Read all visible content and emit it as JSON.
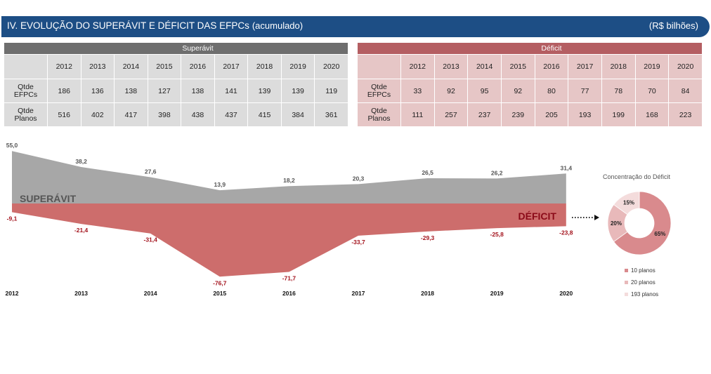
{
  "header": {
    "title": "IV. EVOLUÇÃO DO SUPERÁVIT E DÉFICIT DAS EFPCs",
    "subtitle": "(acumulado)",
    "unit": "(R$ bilhões)"
  },
  "superavit_table": {
    "title": "Superávit",
    "years": [
      "2012",
      "2013",
      "2014",
      "2015",
      "2016",
      "2017",
      "2018",
      "2019",
      "2020"
    ],
    "rows": [
      {
        "label_line1": "Qtde",
        "label_line2": "EFPCs",
        "values": [
          "186",
          "136",
          "138",
          "127",
          "138",
          "141",
          "139",
          "139",
          "119"
        ]
      },
      {
        "label_line1": "Qtde",
        "label_line2": "Planos",
        "values": [
          "516",
          "402",
          "417",
          "398",
          "438",
          "437",
          "415",
          "384",
          "361"
        ]
      }
    ]
  },
  "deficit_table": {
    "title": "Déficit",
    "years": [
      "2012",
      "2013",
      "2014",
      "2015",
      "2016",
      "2017",
      "2018",
      "2019",
      "2020"
    ],
    "rows": [
      {
        "label_line1": "Qtde",
        "label_line2": "EFPCs",
        "values": [
          "33",
          "92",
          "95",
          "92",
          "80",
          "77",
          "78",
          "70",
          "84"
        ]
      },
      {
        "label_line1": "Qtde",
        "label_line2": "Planos",
        "values": [
          "111",
          "257",
          "237",
          "239",
          "205",
          "193",
          "199",
          "168",
          "223"
        ]
      }
    ]
  },
  "chart_data": [
    {
      "type": "area",
      "x": [
        "2012",
        "2013",
        "2014",
        "2015",
        "2016",
        "2017",
        "2018",
        "2019",
        "2020"
      ],
      "series": [
        {
          "name": "SUPERÁVIT",
          "values": [
            55.0,
            38.2,
            27.6,
            13.9,
            18.2,
            20.3,
            26.5,
            26.2,
            31.4
          ],
          "labels": [
            "55,0",
            "38,2",
            "27,6",
            "13,9",
            "18,2",
            "20,3",
            "26,5",
            "26,2",
            "31,4"
          ],
          "color": "#a7a7a7"
        },
        {
          "name": "DÉFICIT",
          "values": [
            -9.1,
            -21.4,
            -31.4,
            -76.7,
            -71.7,
            -33.7,
            -29.3,
            -25.8,
            -23.8
          ],
          "labels": [
            "-9,1",
            "-21,4",
            "-31,4",
            "-76,7",
            "-71,7",
            "-33,7",
            "-29,3",
            "-25,8",
            "-23,8"
          ],
          "color": "#cd6d6c"
        }
      ],
      "label_color_superavit": "#555555",
      "label_color_deficit": "#a3121c",
      "deficit_name_color": "#8b0a18",
      "superavit_name_color": "#555555"
    },
    {
      "type": "pie",
      "title": "Concentração do Déficit",
      "slices": [
        {
          "name": "10 planos",
          "value": 65,
          "label": "65%",
          "color": "#d98a8d"
        },
        {
          "name": "20 planos",
          "value": 20,
          "label": "20%",
          "color": "#e8b9ba"
        },
        {
          "name": "193 planos",
          "value": 15,
          "label": "15%",
          "color": "#f4dcdc"
        }
      ]
    }
  ]
}
